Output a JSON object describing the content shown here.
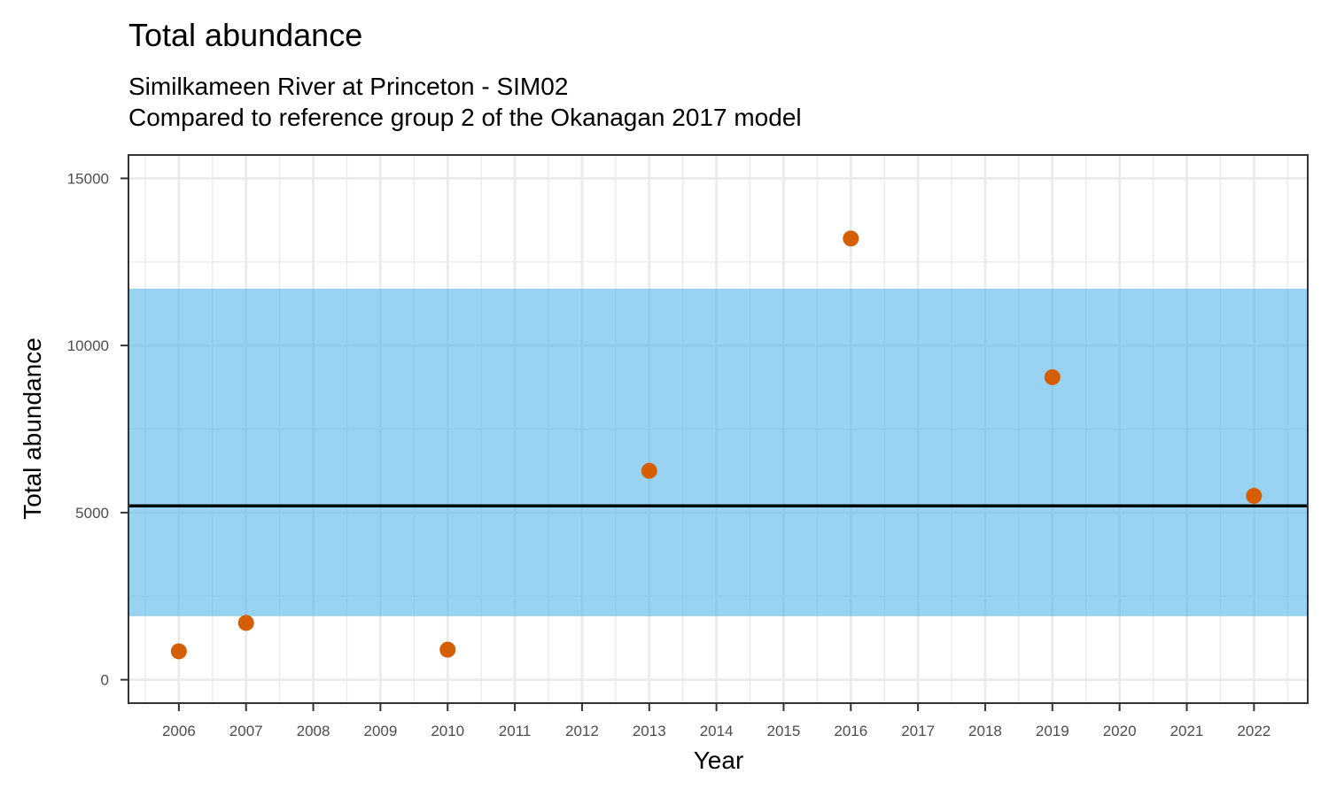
{
  "chart_data": {
    "type": "scatter",
    "title": "Total abundance",
    "subtitle_lines": [
      "Similkameen River at Princeton - SIM02",
      "Compared to reference group 2 of the Okanagan 2017 model"
    ],
    "xlabel": "Year",
    "ylabel": "Total abundance",
    "xlim": [
      2005.25,
      2022.8
    ],
    "ylim": [
      -700,
      15700
    ],
    "x_ticks": [
      2006,
      2007,
      2008,
      2009,
      2010,
      2011,
      2012,
      2013,
      2014,
      2015,
      2016,
      2017,
      2018,
      2019,
      2020,
      2021,
      2022
    ],
    "y_ticks": [
      0,
      5000,
      10000,
      15000
    ],
    "grid": true,
    "reference_band": {
      "low": 1900,
      "high": 11700,
      "color": "#56B4E9",
      "opacity": 0.6
    },
    "reference_line": {
      "value": 5200,
      "color": "#000000"
    },
    "point_color": "#D55E00",
    "series": [
      {
        "name": "Total abundance",
        "x": [
          2006,
          2007,
          2010,
          2013,
          2016,
          2019,
          2022
        ],
        "y": [
          850,
          1700,
          900,
          6250,
          13200,
          9050,
          5500
        ]
      }
    ]
  }
}
